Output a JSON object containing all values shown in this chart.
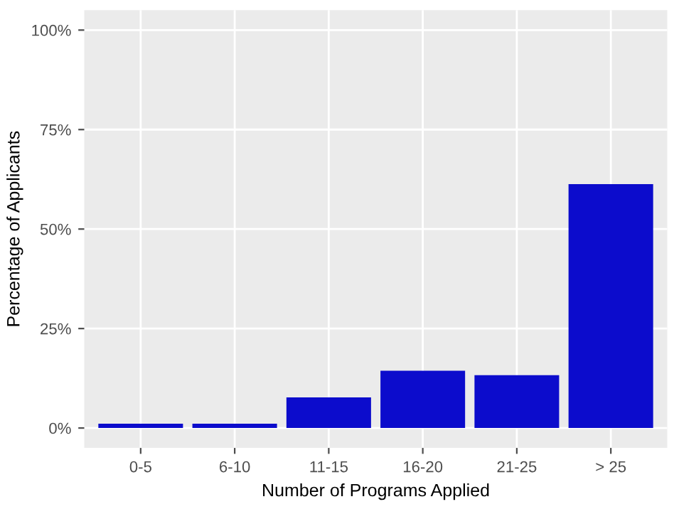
{
  "chart_data": {
    "type": "bar",
    "xlabel": "Number of Programs Applied",
    "ylabel": "Percentage of Applicants",
    "categories": [
      "0-5",
      "6-10",
      "11-15",
      "16-20",
      "21-25",
      "> 25"
    ],
    "values": [
      1.1,
      1.1,
      7.7,
      14.4,
      13.3,
      61.3
    ],
    "color": "#0c0ccc",
    "ylim": [
      -5,
      105
    ],
    "yticks": [
      {
        "value": 0,
        "label": "0%"
      },
      {
        "value": 25,
        "label": "25%"
      },
      {
        "value": 50,
        "label": "50%"
      },
      {
        "value": 75,
        "label": "75%"
      },
      {
        "value": 100,
        "label": "100%"
      }
    ],
    "grid": true
  }
}
